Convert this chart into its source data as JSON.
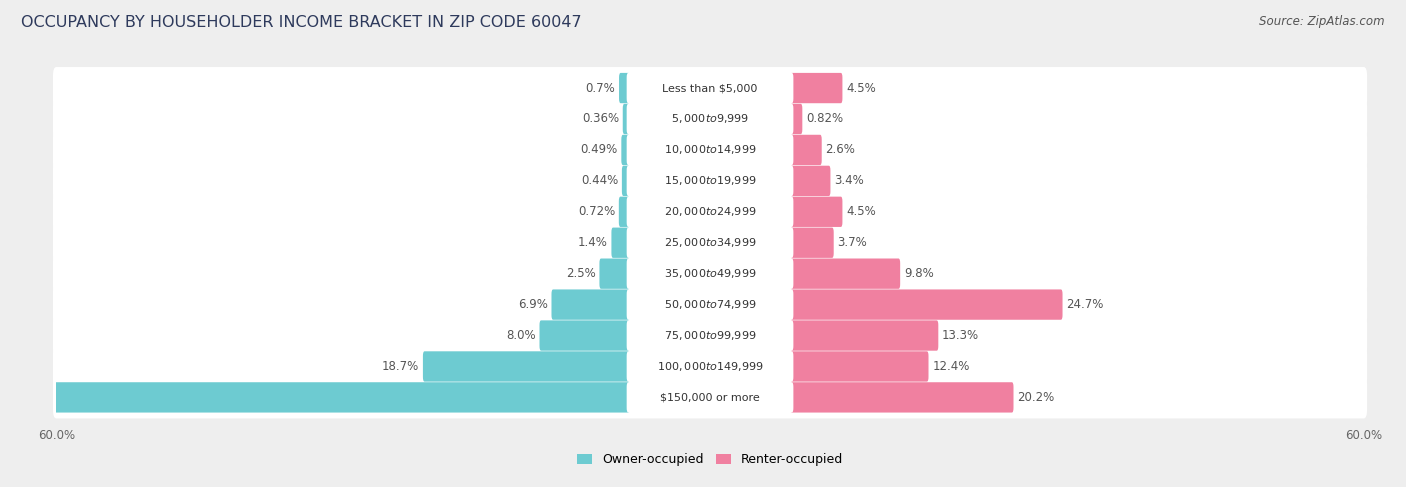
{
  "title": "OCCUPANCY BY HOUSEHOLDER INCOME BRACKET IN ZIP CODE 60047",
  "source": "Source: ZipAtlas.com",
  "categories": [
    "Less than $5,000",
    "$5,000 to $9,999",
    "$10,000 to $14,999",
    "$15,000 to $19,999",
    "$20,000 to $24,999",
    "$25,000 to $34,999",
    "$35,000 to $49,999",
    "$50,000 to $74,999",
    "$75,000 to $99,999",
    "$100,000 to $149,999",
    "$150,000 or more"
  ],
  "owner_values": [
    0.7,
    0.36,
    0.49,
    0.44,
    0.72,
    1.4,
    2.5,
    6.9,
    8.0,
    18.7,
    59.8
  ],
  "renter_values": [
    4.5,
    0.82,
    2.6,
    3.4,
    4.5,
    3.7,
    9.8,
    24.7,
    13.3,
    12.4,
    20.2
  ],
  "owner_color": "#6dcbd1",
  "renter_color": "#f080a0",
  "owner_label": "Owner-occupied",
  "renter_label": "Renter-occupied",
  "axis_max": 60.0,
  "background_color": "#eeeeee",
  "row_bg_color": "#ffffff",
  "title_fontsize": 11.5,
  "label_fontsize": 8.5,
  "category_fontsize": 8.0,
  "source_fontsize": 8.5,
  "title_color": "#2e3a5c",
  "source_color": "#555555",
  "value_color": "#555555"
}
